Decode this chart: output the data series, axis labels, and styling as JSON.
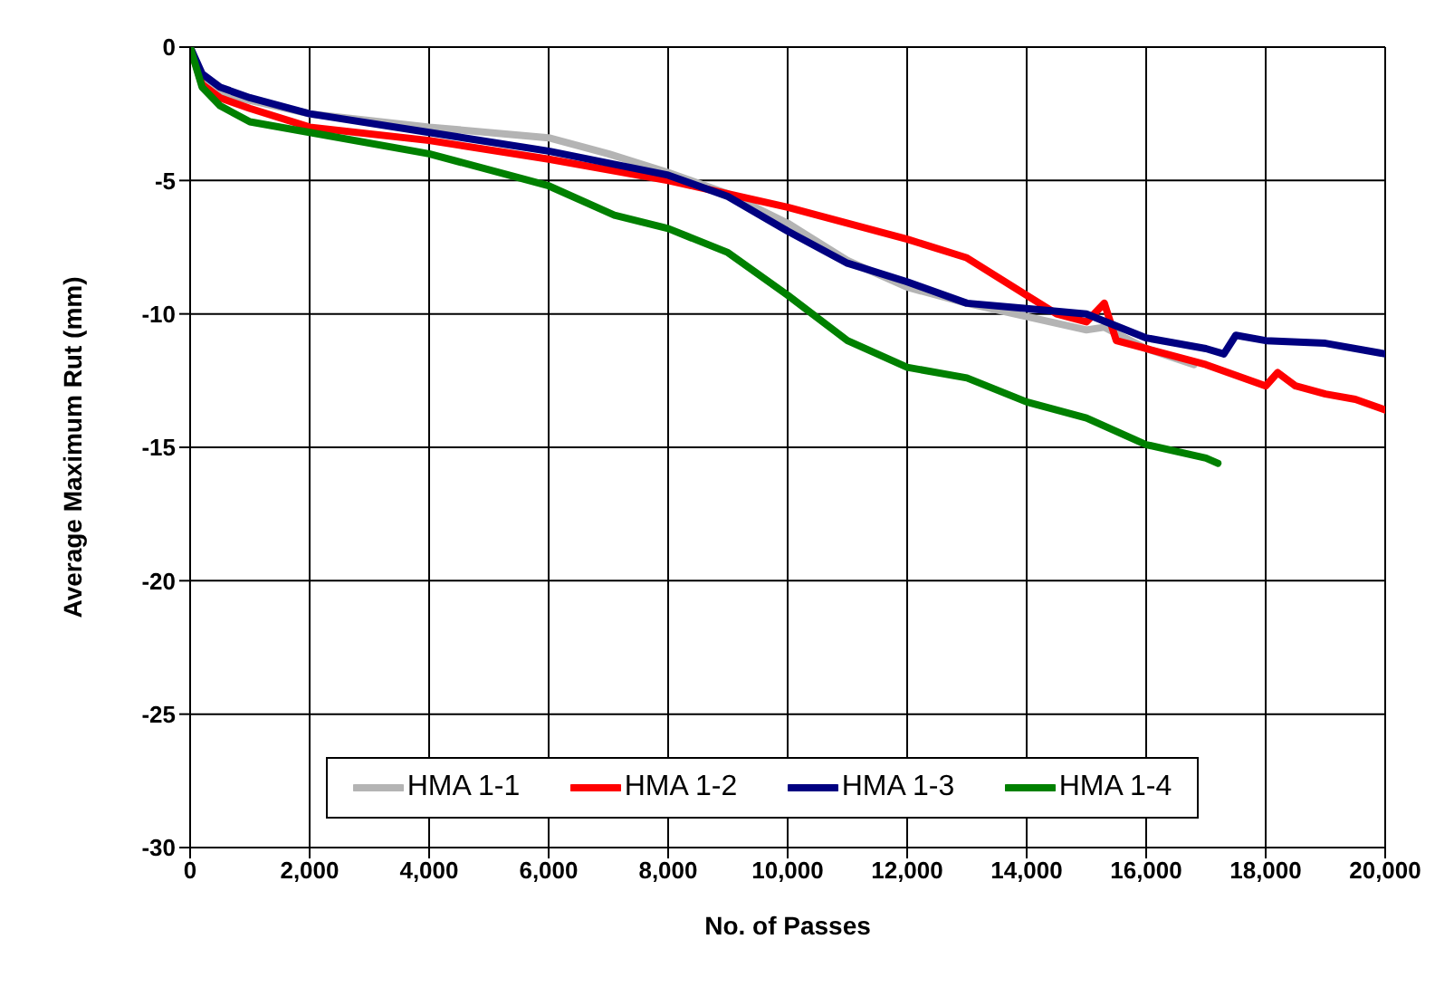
{
  "chart_data": {
    "type": "line",
    "xlabel": "No. of Passes",
    "ylabel": "Average Maximum Rut (mm)",
    "xlim": [
      0,
      20000
    ],
    "ylim": [
      -30,
      0
    ],
    "xticks": [
      {
        "value": 0,
        "label": "0"
      },
      {
        "value": 2000,
        "label": "2,000"
      },
      {
        "value": 4000,
        "label": "4,000"
      },
      {
        "value": 6000,
        "label": "6,000"
      },
      {
        "value": 8000,
        "label": "8,000"
      },
      {
        "value": 10000,
        "label": "10,000"
      },
      {
        "value": 12000,
        "label": "12,000"
      },
      {
        "value": 14000,
        "label": "14,000"
      },
      {
        "value": 16000,
        "label": "16,000"
      },
      {
        "value": 18000,
        "label": "18,000"
      },
      {
        "value": 20000,
        "label": "20,000"
      }
    ],
    "yticks": [
      -30,
      -25,
      -20,
      -15,
      -10,
      -5,
      0
    ],
    "grid": true,
    "legend": "bottom",
    "marker": "none",
    "line_style": "solid",
    "series": [
      {
        "name": "HMA 1-1",
        "color": "#b4b4b4",
        "x": [
          0,
          200,
          500,
          1000,
          2000,
          4000,
          6000,
          7000,
          8000,
          9000,
          10000,
          11000,
          12000,
          13000,
          14000,
          15000,
          15300,
          16000,
          16800
        ],
        "values": [
          0,
          -1.2,
          -1.7,
          -2.0,
          -2.5,
          -3.0,
          -3.4,
          -4.0,
          -4.7,
          -5.5,
          -6.6,
          -8.0,
          -9.0,
          -9.6,
          -10.1,
          -10.6,
          -10.5,
          -11.3,
          -11.9
        ]
      },
      {
        "name": "HMA 1-2",
        "color": "#ff0000",
        "x": [
          0,
          200,
          500,
          1000,
          2000,
          4000,
          6000,
          8000,
          10000,
          12000,
          13000,
          14000,
          14500,
          15000,
          15300,
          15500,
          16000,
          17000,
          18000,
          18200,
          18500,
          19000,
          19500,
          20000
        ],
        "values": [
          0,
          -1.4,
          -1.9,
          -2.3,
          -3.0,
          -3.5,
          -4.2,
          -5.0,
          -6.0,
          -7.2,
          -7.9,
          -9.3,
          -10.0,
          -10.3,
          -9.6,
          -11.0,
          -11.3,
          -11.9,
          -12.7,
          -12.2,
          -12.7,
          -13.0,
          -13.2,
          -13.6
        ]
      },
      {
        "name": "HMA 1-3",
        "color": "#000080",
        "x": [
          0,
          200,
          500,
          1000,
          2000,
          4000,
          6000,
          8000,
          9000,
          10000,
          11000,
          12000,
          13000,
          14000,
          15000,
          16000,
          17000,
          17300,
          17500,
          18000,
          19000,
          20000
        ],
        "values": [
          0,
          -1.0,
          -1.5,
          -1.9,
          -2.5,
          -3.2,
          -3.9,
          -4.8,
          -5.6,
          -6.9,
          -8.1,
          -8.8,
          -9.6,
          -9.8,
          -10.0,
          -10.9,
          -11.3,
          -11.5,
          -10.8,
          -11.0,
          -11.1,
          -11.5
        ]
      },
      {
        "name": "HMA 1-4",
        "color": "#008000",
        "x": [
          0,
          200,
          500,
          1000,
          2000,
          4000,
          6000,
          7100,
          8000,
          9000,
          10000,
          11000,
          12000,
          13000,
          14000,
          15000,
          16000,
          17000,
          17200
        ],
        "values": [
          0,
          -1.5,
          -2.2,
          -2.8,
          -3.2,
          -4.0,
          -5.2,
          -6.3,
          -6.8,
          -7.7,
          -9.3,
          -11.0,
          -12.0,
          -12.4,
          -13.3,
          -13.9,
          -14.9,
          -15.4,
          -15.6
        ]
      }
    ]
  }
}
